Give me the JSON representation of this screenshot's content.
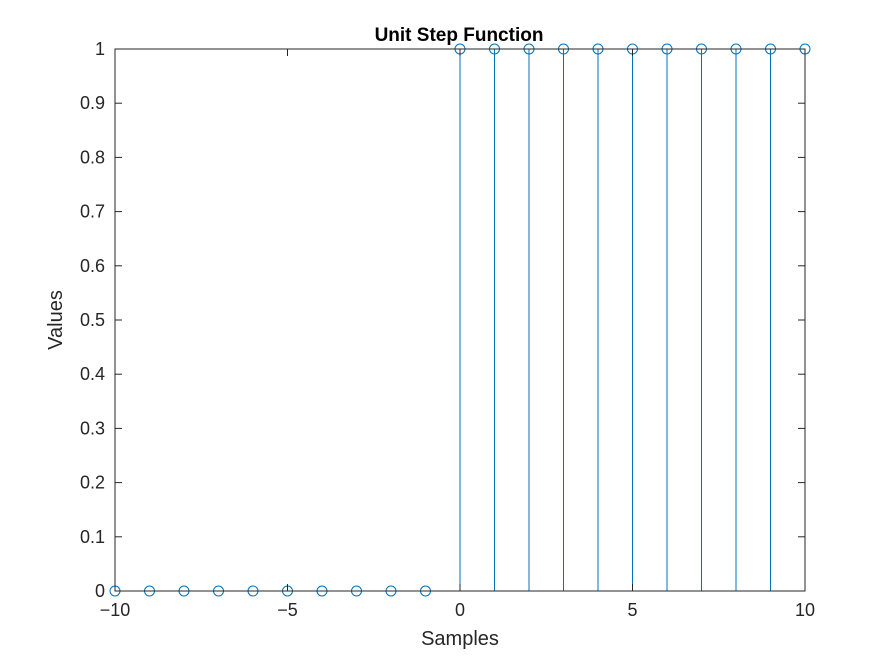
{
  "chart_data": {
    "type": "stem",
    "title": "Unit Step Function",
    "xlabel": "Samples",
    "ylabel": "Values",
    "x": [
      -10,
      -9,
      -8,
      -7,
      -6,
      -5,
      -4,
      -3,
      -2,
      -1,
      0,
      1,
      2,
      3,
      4,
      5,
      6,
      7,
      8,
      9,
      10
    ],
    "y": [
      0,
      0,
      0,
      0,
      0,
      0,
      0,
      0,
      0,
      0,
      1,
      1,
      1,
      1,
      1,
      1,
      1,
      1,
      1,
      1,
      1
    ],
    "xlim": [
      -10,
      10
    ],
    "ylim": [
      0,
      1
    ],
    "xticks": [
      -10,
      -5,
      0,
      5,
      10
    ],
    "xtick_labels": [
      "−10",
      "−5",
      "0",
      "5",
      "10"
    ],
    "yticks": [
      0,
      0.1,
      0.2,
      0.3,
      0.4,
      0.5,
      0.6,
      0.7,
      0.8,
      0.9,
      1
    ],
    "ytick_labels": [
      "0",
      "0.1",
      "0.2",
      "0.3",
      "0.4",
      "0.5",
      "0.6",
      "0.7",
      "0.8",
      "0.9",
      "1"
    ],
    "grid": false,
    "box": true,
    "marker": "circle-open",
    "series_color": "#0072bd",
    "axis_color": "#262626"
  }
}
